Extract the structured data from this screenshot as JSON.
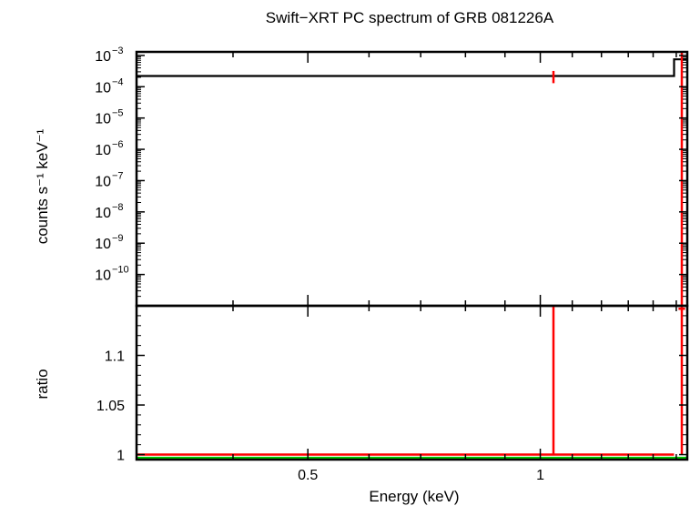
{
  "chart_data": [
    {
      "type": "line",
      "title": "Swift−XRT PC spectrum of GRB 081226A",
      "ylabel": "counts s⁻¹ keV⁻¹",
      "xscale": "log",
      "yscale": "log",
      "xlim": [
        0.3,
        1.55
      ],
      "ylim": [
        1e-11,
        0.0013
      ],
      "yticks": [
        {
          "value": 0.001,
          "base": "10",
          "exp": "−3"
        },
        {
          "value": 0.0001,
          "base": "10",
          "exp": "−4"
        },
        {
          "value": 1e-05,
          "base": "10",
          "exp": "−5"
        },
        {
          "value": 1e-06,
          "base": "10",
          "exp": "−6"
        },
        {
          "value": 1e-07,
          "base": "10",
          "exp": "−7"
        },
        {
          "value": 1e-08,
          "base": "10",
          "exp": "−8"
        },
        {
          "value": 1e-09,
          "base": "10",
          "exp": "−9"
        },
        {
          "value": 1e-10,
          "base": "10",
          "exp": "−10"
        }
      ],
      "series": [
        {
          "color": "#000000",
          "style": "step",
          "x": [
            0.3,
            1.49,
            1.49,
            1.55
          ],
          "y": [
            0.00022,
            0.00022,
            0.00075,
            0.00075
          ]
        },
        {
          "color": "#ff0000",
          "style": "errorbar",
          "points": [
            {
              "x": 1.04,
              "y_lo": 0.00013,
              "y_hi": 0.00032,
              "x_lo": 1.04,
              "x_hi": 1.04
            },
            {
              "x": 1.525,
              "y_lo": 1e-11,
              "y_hi": 0.0013,
              "x_lo": 1.51,
              "x_hi": 1.54
            }
          ]
        }
      ]
    },
    {
      "type": "line",
      "xlabel": "Energy (keV)",
      "ylabel": "ratio",
      "xscale": "log",
      "xlim": [
        0.3,
        1.55
      ],
      "ylim": [
        0.995,
        1.15
      ],
      "xticks": [
        {
          "value": 0.5,
          "label": "0.5"
        },
        {
          "value": 1,
          "label": "1"
        }
      ],
      "yticks": [
        {
          "value": 1,
          "label": "1"
        },
        {
          "value": 1.05,
          "label": "1.05"
        },
        {
          "value": 1.1,
          "label": "1.1"
        }
      ],
      "series": [
        {
          "color": "#00cc00",
          "style": "line",
          "x": [
            0.3,
            1.55
          ],
          "y": [
            0.9965,
            0.9965
          ]
        },
        {
          "color": "#ff0000",
          "style": "line",
          "x": [
            0.3,
            1.49
          ],
          "y": [
            1.0,
            1.0
          ]
        },
        {
          "color": "#ff0000",
          "style": "errorbar",
          "points": [
            {
              "x": 1.04,
              "y_lo": 1.0,
              "y_hi": 1.15
            },
            {
              "x": 1.525,
              "y_lo": 1.0,
              "y_hi": 1.15,
              "x_lo": 1.51,
              "x_hi": 1.54,
              "y": 1.147
            }
          ]
        }
      ]
    }
  ]
}
